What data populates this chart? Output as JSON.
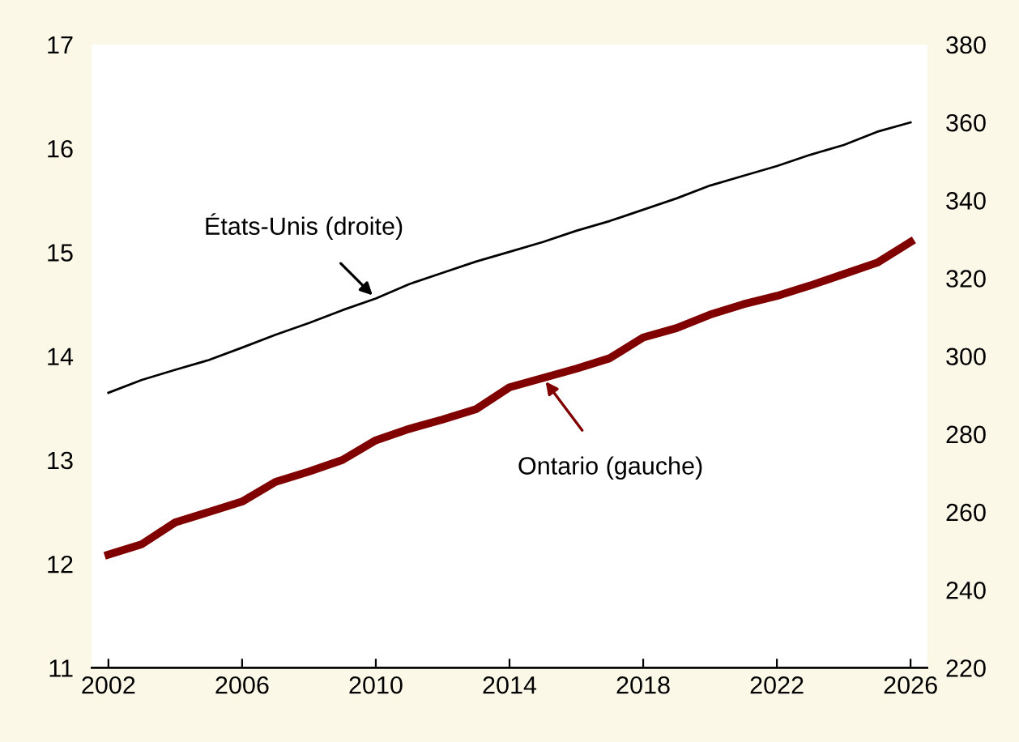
{
  "chart_data": {
    "type": "line",
    "x": [
      2002,
      2003,
      2004,
      2005,
      2006,
      2007,
      2008,
      2009,
      2010,
      2011,
      2012,
      2013,
      2014,
      2015,
      2016,
      2017,
      2018,
      2019,
      2020,
      2021,
      2022,
      2023,
      2024,
      2025,
      2026
    ],
    "series": [
      {
        "name": "Ontario (gauche)",
        "color": "#800000",
        "values": [
          12.09,
          12.19,
          12.4,
          12.5,
          12.6,
          12.79,
          12.89,
          13.0,
          13.19,
          13.3,
          13.39,
          13.49,
          13.7,
          13.79,
          13.88,
          13.98,
          14.18,
          14.27,
          14.4,
          14.5,
          14.58,
          14.68,
          14.79,
          14.9,
          15.1
        ]
      },
      {
        "name": "États-Unis (droite)",
        "color": "#000000",
        "axis": "y2",
        "values": [
          290.6,
          293.9,
          296.5,
          299,
          302.2,
          305.5,
          308.5,
          311.8,
          314.8,
          318.5,
          321.4,
          324.3,
          326.8,
          329.3,
          332.2,
          334.7,
          337.6,
          340.5,
          343.8,
          346.3,
          348.8,
          351.7,
          354.2,
          357.6,
          360
        ]
      }
    ],
    "xlim": [
      2001.5,
      2026.5
    ],
    "xticks": [
      2002,
      2006,
      2010,
      2014,
      2018,
      2022,
      2026
    ],
    "ylim": [
      11,
      17
    ],
    "yticks": [
      11,
      12,
      13,
      14,
      15,
      16,
      17
    ],
    "y2lim": [
      220,
      380
    ],
    "y2ticks": [
      220,
      240,
      260,
      280,
      300,
      320,
      340,
      360,
      380
    ],
    "grid": false,
    "marker": "none",
    "line_style": "solid"
  }
}
